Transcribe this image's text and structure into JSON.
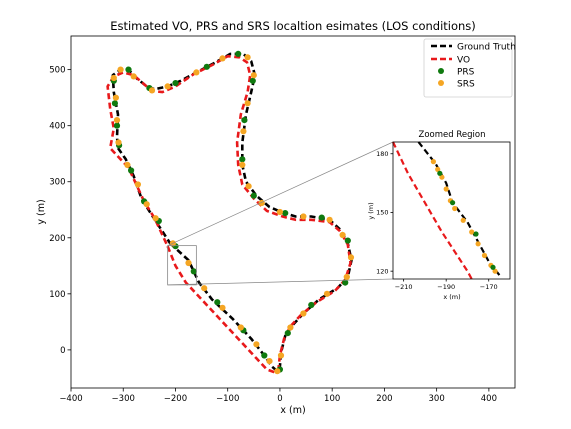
{
  "chart_data": [
    {
      "type": "line",
      "title": "Estimated VO, PRS and SRS localtion esimates (LOS conditions)",
      "xlabel": "x (m)",
      "ylabel": "y (m)",
      "xlim": [
        -400,
        450
      ],
      "ylim": [
        -68,
        560
      ],
      "x_ticks": [
        -400,
        -300,
        -200,
        -100,
        0,
        100,
        200,
        300,
        400
      ],
      "y_ticks": [
        0,
        100,
        200,
        300,
        400,
        500
      ],
      "grid": false,
      "legend_position": "top-right",
      "series": [
        {
          "name": "Ground Truth",
          "style": "dashed",
          "color": "#000000",
          "points": [
            [
              -210,
              190
            ],
            [
              -175,
              160
            ],
            [
              -155,
              120
            ],
            [
              -130,
              90
            ],
            [
              -90,
              55
            ],
            [
              -55,
              20
            ],
            [
              -30,
              -10
            ],
            [
              -15,
              -30
            ],
            [
              -5,
              -38
            ],
            [
              0,
              -30
            ],
            [
              2,
              -5
            ],
            [
              10,
              25
            ],
            [
              25,
              45
            ],
            [
              45,
              65
            ],
            [
              75,
              90
            ],
            [
              110,
              110
            ],
            [
              130,
              130
            ],
            [
              137,
              160
            ],
            [
              130,
              190
            ],
            [
              115,
              215
            ],
            [
              95,
              232
            ],
            [
              60,
              238
            ],
            [
              30,
              238
            ],
            [
              5,
              245
            ],
            [
              -20,
              255
            ],
            [
              -45,
              275
            ],
            [
              -65,
              300
            ],
            [
              -72,
              330
            ],
            [
              -72,
              370
            ],
            [
              -65,
              420
            ],
            [
              -55,
              460
            ],
            [
              -48,
              490
            ],
            [
              -55,
              515
            ],
            [
              -70,
              528
            ],
            [
              -95,
              528
            ],
            [
              -125,
              512
            ],
            [
              -160,
              495
            ],
            [
              -190,
              480
            ],
            [
              -215,
              470
            ],
            [
              -240,
              465
            ],
            [
              -255,
              470
            ],
            [
              -275,
              485
            ],
            [
              -290,
              500
            ],
            [
              -305,
              500
            ],
            [
              -320,
              490
            ],
            [
              -318,
              460
            ],
            [
              -310,
              420
            ],
            [
              -312,
              380
            ],
            [
              -310,
              360
            ],
            [
              -295,
              340
            ],
            [
              -280,
              310
            ],
            [
              -265,
              270
            ],
            [
              -245,
              240
            ],
            [
              -210,
              190
            ]
          ]
        },
        {
          "name": "VO",
          "style": "dashed",
          "color": "#e8191b",
          "points": [
            [
              -215,
              185
            ],
            [
              -200,
              150
            ],
            [
              -180,
              120
            ],
            [
              -155,
              95
            ],
            [
              -120,
              60
            ],
            [
              -80,
              20
            ],
            [
              -45,
              -15
            ],
            [
              -25,
              -35
            ],
            [
              -10,
              -40
            ],
            [
              -3,
              -35
            ],
            [
              0,
              -10
            ],
            [
              8,
              20
            ],
            [
              20,
              42
            ],
            [
              40,
              62
            ],
            [
              70,
              85
            ],
            [
              105,
              105
            ],
            [
              125,
              125
            ],
            [
              135,
              155
            ],
            [
              130,
              188
            ],
            [
              115,
              212
            ],
            [
              95,
              228
            ],
            [
              60,
              232
            ],
            [
              30,
              232
            ],
            [
              5,
              238
            ],
            [
              -25,
              248
            ],
            [
              -50,
              270
            ],
            [
              -72,
              295
            ],
            [
              -80,
              330
            ],
            [
              -82,
              370
            ],
            [
              -75,
              420
            ],
            [
              -62,
              460
            ],
            [
              -57,
              490
            ],
            [
              -63,
              513
            ],
            [
              -78,
              522
            ],
            [
              -100,
              524
            ],
            [
              -130,
              508
            ],
            [
              -165,
              492
            ],
            [
              -200,
              470
            ],
            [
              -225,
              460
            ],
            [
              -245,
              462
            ],
            [
              -265,
              478
            ],
            [
              -280,
              490
            ],
            [
              -300,
              495
            ],
            [
              -318,
              488
            ],
            [
              -330,
              470
            ],
            [
              -325,
              430
            ],
            [
              -318,
              395
            ],
            [
              -325,
              360
            ],
            [
              -310,
              345
            ],
            [
              -290,
              325
            ],
            [
              -275,
              295
            ],
            [
              -260,
              265
            ],
            [
              -240,
              235
            ],
            [
              -215,
              185
            ]
          ]
        },
        {
          "name": "PRS",
          "style": "markers",
          "color": "#0f7a0f",
          "points": [
            [
              -318,
              480
            ],
            [
              -316,
              440
            ],
            [
              -312,
              400
            ],
            [
              -308,
              365
            ],
            [
              -285,
              320
            ],
            [
              -260,
              265
            ],
            [
              -232,
              230
            ],
            [
              -200,
              185
            ],
            [
              -165,
              140
            ],
            [
              -120,
              85
            ],
            [
              -70,
              35
            ],
            [
              -30,
              -10
            ],
            [
              0,
              -35
            ],
            [
              15,
              30
            ],
            [
              60,
              80
            ],
            [
              125,
              120
            ],
            [
              130,
              195
            ],
            [
              80,
              236
            ],
            [
              10,
              244
            ],
            [
              -50,
              275
            ],
            [
              -72,
              340
            ],
            [
              -68,
              410
            ],
            [
              -52,
              480
            ],
            [
              -80,
              528
            ],
            [
              -140,
              505
            ],
            [
              -200,
              476
            ],
            [
              -250,
              467
            ],
            [
              -290,
              500
            ]
          ]
        },
        {
          "name": "SRS",
          "style": "markers",
          "color": "#f5a623",
          "points": [
            [
              -318,
              485
            ],
            [
              -314,
              450
            ],
            [
              -312,
              410
            ],
            [
              -309,
              370
            ],
            [
              -292,
              330
            ],
            [
              -272,
              295
            ],
            [
              -255,
              260
            ],
            [
              -238,
              235
            ],
            [
              -205,
              190
            ],
            [
              -175,
              155
            ],
            [
              -145,
              110
            ],
            [
              -110,
              75
            ],
            [
              -75,
              40
            ],
            [
              -45,
              10
            ],
            [
              -20,
              -20
            ],
            [
              -5,
              -38
            ],
            [
              2,
              -10
            ],
            [
              20,
              40
            ],
            [
              45,
              65
            ],
            [
              90,
              100
            ],
            [
              128,
              130
            ],
            [
              136,
              165
            ],
            [
              120,
              205
            ],
            [
              95,
              232
            ],
            [
              45,
              238
            ],
            [
              0,
              246
            ],
            [
              -35,
              262
            ],
            [
              -60,
              292
            ],
            [
              -72,
              330
            ],
            [
              -70,
              390
            ],
            [
              -62,
              440
            ],
            [
              -50,
              490
            ],
            [
              -62,
              522
            ],
            [
              -110,
              520
            ],
            [
              -160,
              495
            ],
            [
              -215,
              470
            ],
            [
              -245,
              463
            ],
            [
              -280,
              488
            ],
            [
              -305,
              500
            ]
          ]
        }
      ]
    },
    {
      "type": "line",
      "title": "Zoomed Region",
      "xlabel": "x (m)",
      "ylabel": "y (m)",
      "xlim": [
        -215,
        -160
      ],
      "ylim": [
        116,
        186
      ],
      "x_ticks": [
        -210,
        -190,
        -170
      ],
      "y_ticks": [
        120,
        150,
        180
      ],
      "series": [
        {
          "name": "Ground Truth",
          "style": "dashed",
          "color": "#000000",
          "points": [
            [
              -203,
              186
            ],
            [
              -195,
              175
            ],
            [
              -190,
              165
            ],
            [
              -187,
              155
            ],
            [
              -180,
              145
            ],
            [
              -175,
              135
            ],
            [
              -170,
              125
            ],
            [
              -165,
              118
            ]
          ]
        },
        {
          "name": "VO",
          "style": "dashed",
          "color": "#e8191b",
          "points": [
            [
              -215,
              186
            ],
            [
              -208,
              170
            ],
            [
              -200,
              155
            ],
            [
              -192,
              140
            ],
            [
              -186,
              130
            ],
            [
              -180,
              120
            ],
            [
              -178,
              116
            ]
          ]
        },
        {
          "name": "SRS",
          "style": "markers",
          "color": "#f5a623",
          "points": [
            [
              -196,
              176
            ],
            [
              -194,
              172
            ],
            [
              -192,
              168
            ],
            [
              -190,
              162
            ],
            [
              -188,
              156
            ],
            [
              -186,
              152
            ],
            [
              -182,
              146
            ],
            [
              -178,
              140
            ],
            [
              -175,
              134
            ],
            [
              -172,
              128
            ],
            [
              -169,
              123
            ],
            [
              -167,
              120
            ]
          ]
        },
        {
          "name": "PRS",
          "style": "markers",
          "color": "#0f7a0f",
          "points": [
            [
              -193,
              170
            ],
            [
              -187,
              155
            ],
            [
              -176,
              139
            ],
            [
              -168,
              122
            ]
          ]
        }
      ]
    }
  ]
}
